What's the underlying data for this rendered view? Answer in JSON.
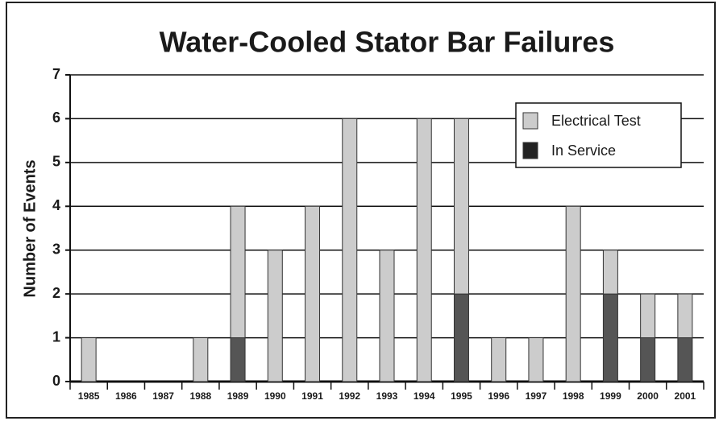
{
  "chart_data": {
    "type": "stacked_bar",
    "title": "Water-Cooled Stator Bar Failures",
    "y_label": "Number of Events",
    "categories": [
      "1985",
      "1986",
      "1987",
      "1988",
      "1989",
      "1990",
      "1991",
      "1992",
      "1993",
      "1994",
      "1995",
      "1996",
      "1997",
      "1998",
      "1999",
      "2000",
      "2001"
    ],
    "series": [
      {
        "name": "In Service",
        "color": "#555555",
        "values": [
          0,
          0,
          0,
          0,
          1,
          0,
          0,
          0,
          0,
          0,
          2,
          0,
          0,
          0,
          2,
          1,
          1
        ]
      },
      {
        "name": "Electrical Test",
        "color": "#cccccc",
        "values": [
          1,
          0,
          0,
          1,
          3,
          3,
          4,
          6,
          3,
          6,
          4,
          1,
          1,
          4,
          1,
          1,
          1
        ]
      }
    ],
    "ylim": [
      0,
      7
    ],
    "yticks": [
      0,
      1,
      2,
      3,
      4,
      5,
      6,
      7
    ],
    "grid": true,
    "legend": "upper right"
  }
}
